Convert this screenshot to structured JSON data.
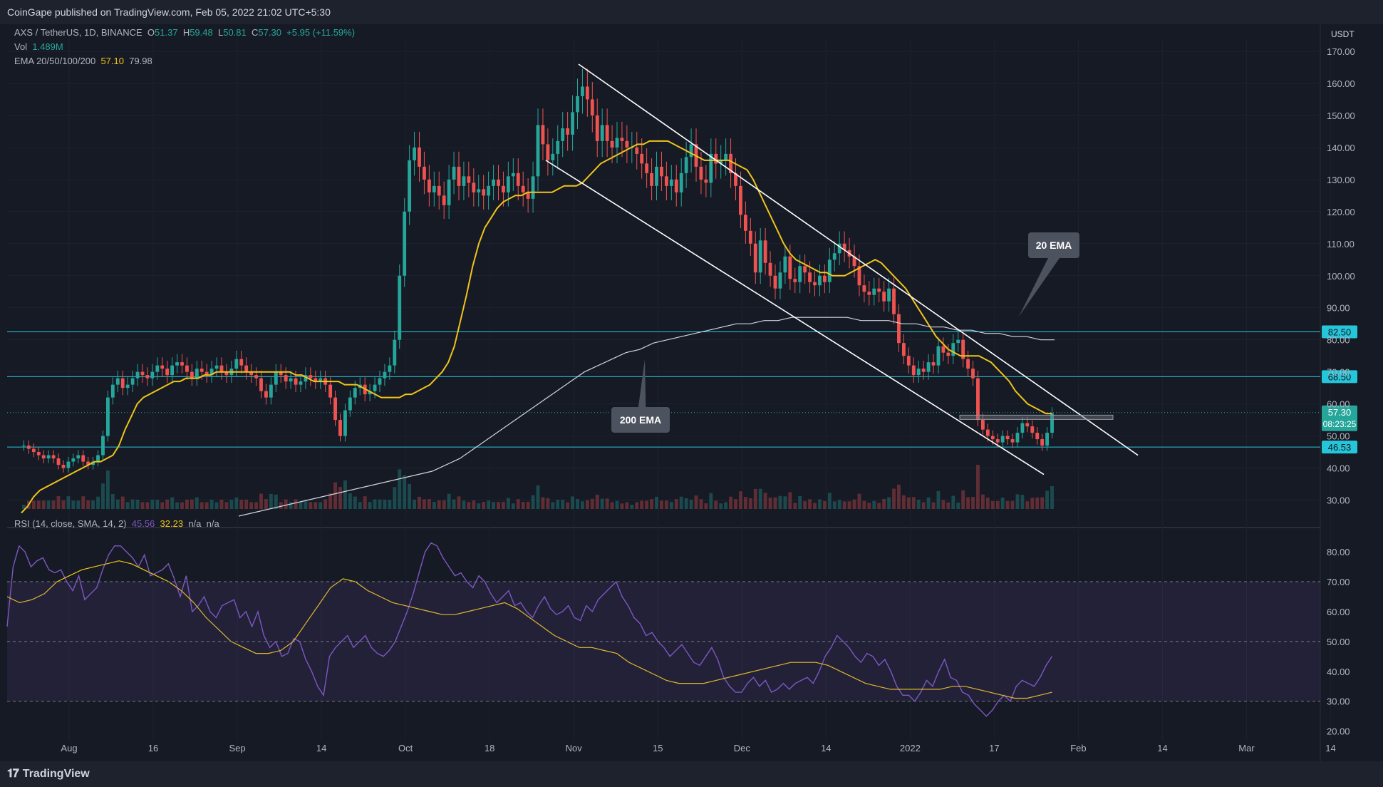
{
  "header": {
    "published": "CoinGape published on TradingView.com, Feb 05, 2022 21:02 UTC+5:30"
  },
  "footer": {
    "brand": "TradingView"
  },
  "legend": {
    "symbol": "AXS / TetherUS, 1D, BINANCE",
    "o_label": "O",
    "o": "51.37",
    "h_label": "H",
    "h": "59.48",
    "l_label": "L",
    "l": "50.81",
    "c_label": "C",
    "c": "57.30",
    "change": "+5.95 (+11.59%)",
    "vol_label": "Vol",
    "vol": "1.489M",
    "ema_label": "EMA 20/50/100/200",
    "ema20": "57.10",
    "ema200": "79.98",
    "rsi_label": "RSI (14, close, SMA, 14, 2)",
    "rsi": "45.56",
    "rsi_sma": "32.23",
    "na1": "n/a",
    "na2": "n/a"
  },
  "colors": {
    "up": "#26a69a",
    "down": "#ef5350",
    "ema20": "#f0c419",
    "ema200": "#d1d4dc",
    "rsi": "#7e57c2",
    "rsi_sma": "#f0c419",
    "level": "#26c6da",
    "bg": "#161a25"
  },
  "chart_data": [
    {
      "type": "candlestick",
      "currency_label": "USDT",
      "x_axis": [
        "Aug",
        "16",
        "Sep",
        "14",
        "Oct",
        "18",
        "Nov",
        "15",
        "Dec",
        "14",
        "2022",
        "17",
        "Feb",
        "14",
        "Mar",
        "14"
      ],
      "y_ticks": [
        "170.00",
        "160.00",
        "150.00",
        "140.00",
        "130.00",
        "120.00",
        "110.00",
        "100.00",
        "90.00",
        "80.00",
        "70.00",
        "60.00",
        "50.00",
        "40.00",
        "30.00"
      ],
      "y_tick_values": [
        170,
        160,
        150,
        140,
        130,
        120,
        110,
        100,
        90,
        80,
        70,
        60,
        50,
        40,
        30
      ],
      "ylim": [
        25,
        174
      ],
      "close_series": [
        47,
        46,
        45,
        44,
        43,
        44,
        43,
        41,
        40,
        42,
        43,
        44,
        42,
        41,
        42,
        44,
        50,
        62,
        66,
        68,
        65,
        66,
        68,
        70,
        69,
        68,
        70,
        72,
        71,
        69,
        72,
        73,
        72,
        70,
        68,
        71,
        70,
        69,
        71,
        72,
        70,
        69,
        71,
        74,
        72,
        70,
        69,
        68,
        64,
        62,
        66,
        70,
        69,
        67,
        68,
        66,
        67,
        69,
        68,
        67,
        68,
        66,
        62,
        55,
        50,
        58,
        62,
        65,
        66,
        63,
        64,
        66,
        68,
        70,
        72,
        80,
        100,
        120,
        136,
        140,
        134,
        130,
        126,
        128,
        125,
        122,
        130,
        134,
        128,
        131,
        129,
        126,
        127,
        125,
        128,
        130,
        128,
        126,
        131,
        132,
        128,
        126,
        124,
        131,
        147,
        141,
        136,
        138,
        142,
        146,
        144,
        151,
        156,
        159,
        155,
        150,
        142,
        147,
        142,
        140,
        143,
        142,
        140,
        140,
        138,
        135,
        132,
        128,
        134,
        131,
        128,
        130,
        126,
        132,
        137,
        141,
        134,
        130,
        129,
        138,
        135,
        136,
        138,
        132,
        128,
        119,
        114,
        110,
        101,
        111,
        104,
        100,
        96,
        101,
        106,
        99,
        98,
        103,
        101,
        98,
        97,
        100,
        98,
        105,
        107,
        110,
        108,
        106,
        103,
        97,
        95,
        94,
        96,
        95,
        92,
        96,
        88,
        79,
        75,
        72,
        69,
        71,
        70,
        73,
        72,
        78,
        76,
        75,
        79,
        80,
        74,
        71,
        68,
        55,
        52,
        50,
        49,
        48,
        50,
        49,
        48,
        51,
        54,
        53,
        51,
        49,
        47,
        51,
        57
      ],
      "ema20_series": [
        26,
        28,
        31,
        33,
        34,
        35,
        36,
        37,
        38,
        39,
        40,
        41,
        42,
        42,
        43,
        44,
        47,
        52,
        56,
        60,
        62,
        63,
        64,
        65,
        66,
        67,
        67,
        68,
        68,
        68,
        69,
        69,
        70,
        70,
        70,
        70,
        70,
        70,
        70,
        70,
        70,
        70,
        70,
        70,
        70,
        69,
        69,
        68,
        67,
        67,
        67,
        67,
        67,
        66,
        66,
        66,
        65,
        64,
        63,
        62,
        62,
        62,
        62,
        63,
        63,
        64,
        65,
        66,
        68,
        70,
        73,
        78,
        86,
        94,
        103,
        110,
        115,
        118,
        121,
        123,
        124,
        125,
        125,
        126,
        126,
        126,
        126,
        126,
        127,
        128,
        128,
        128,
        129,
        131,
        133,
        135,
        136,
        137,
        138,
        139,
        140,
        141,
        141,
        142,
        142,
        142,
        142,
        141,
        140,
        139,
        138,
        137,
        136,
        136,
        136,
        136,
        136,
        135,
        134,
        133,
        130,
        126,
        122,
        118,
        114,
        110,
        107,
        105,
        104,
        103,
        102,
        101,
        101,
        100,
        100,
        100,
        101,
        102,
        103,
        104,
        105,
        104,
        102,
        100,
        98,
        96,
        93,
        90,
        87,
        84,
        81,
        79,
        77,
        76,
        75,
        75,
        75,
        75,
        74,
        73,
        71,
        69,
        67,
        64,
        62,
        60,
        59,
        58,
        57,
        57
      ],
      "ema200_series": [
        25,
        26,
        27,
        28,
        29,
        30,
        31,
        32,
        33,
        34,
        35,
        36,
        37,
        38,
        39,
        41,
        43,
        46,
        49,
        52,
        55,
        58,
        61,
        64,
        67,
        70,
        72,
        74,
        76,
        77,
        79,
        80,
        81,
        82,
        83,
        84,
        85,
        85,
        86,
        86,
        87,
        87,
        87,
        87,
        87,
        86,
        86,
        86,
        85,
        85,
        84,
        84,
        83,
        83,
        82,
        82,
        81,
        81,
        80,
        80
      ],
      "volume_note": "Vol 1.489M"
    },
    {
      "type": "line",
      "title": "RSI (14, close, SMA, 14, 2)",
      "y_ticks": [
        "80.00",
        "70.00",
        "60.00",
        "50.00",
        "40.00",
        "30.00",
        "20.00"
      ],
      "y_tick_values": [
        80,
        70,
        60,
        50,
        40,
        30,
        20
      ],
      "ylim": [
        18,
        86
      ],
      "bands": [
        70,
        50,
        30
      ],
      "series": [
        {
          "values": [
            55,
            75,
            82,
            80,
            75,
            77,
            78,
            74,
            73,
            74,
            70,
            67,
            72,
            64,
            66,
            68,
            74,
            79,
            82,
            82,
            80,
            78,
            75,
            79,
            72,
            73,
            74,
            76,
            71,
            65,
            72,
            60,
            62,
            65,
            60,
            58,
            62,
            63,
            64,
            58,
            60,
            55,
            60,
            52,
            48,
            50,
            45,
            46,
            51,
            50,
            44,
            40,
            35,
            32,
            45,
            48,
            50,
            52,
            48,
            50,
            52,
            48,
            46,
            45,
            47,
            50,
            55,
            60,
            66,
            73,
            80,
            83,
            82,
            78,
            75,
            72,
            73,
            70,
            68,
            72,
            70,
            66,
            63,
            65,
            67,
            62,
            63,
            60,
            58,
            62,
            65,
            61,
            59,
            60,
            62,
            58,
            57,
            62,
            60,
            64,
            66,
            68,
            70,
            65,
            62,
            58,
            56,
            52,
            53,
            50,
            48,
            45,
            47,
            49,
            46,
            43,
            42,
            45,
            48,
            44,
            38,
            35,
            33,
            33,
            36,
            38,
            35,
            37,
            33,
            34,
            36,
            34,
            36,
            37,
            38,
            36,
            40,
            45,
            48,
            52,
            50,
            48,
            45,
            43,
            46,
            45,
            42,
            44,
            40,
            35,
            32,
            32,
            30,
            33,
            37,
            35,
            40,
            44,
            38,
            37,
            33,
            32,
            29,
            27,
            25,
            27,
            30,
            32,
            30,
            35,
            37,
            36,
            35,
            38,
            42,
            45
          ]
        },
        {
          "values": [
            65,
            63,
            64,
            66,
            70,
            72,
            74,
            75,
            76,
            77,
            76,
            74,
            72,
            70,
            67,
            63,
            58,
            54,
            50,
            48,
            46,
            46,
            47,
            50,
            56,
            62,
            68,
            71,
            70,
            67,
            65,
            63,
            62,
            61,
            60,
            59,
            59,
            60,
            61,
            62,
            63,
            61,
            58,
            55,
            52,
            50,
            48,
            48,
            47,
            46,
            43,
            41,
            39,
            37,
            36,
            36,
            36,
            37,
            38,
            39,
            40,
            41,
            42,
            43,
            43,
            43,
            42,
            40,
            38,
            36,
            35,
            34,
            34,
            34,
            34,
            34,
            35,
            35,
            34,
            33,
            32,
            31,
            31,
            32,
            33
          ]
        }
      ]
    }
  ],
  "levels": [
    "82.50",
    "68.50",
    "46.53"
  ],
  "price_badges": {
    "last": "57.30",
    "countdown": "08:23:25"
  },
  "annotations": {
    "ema20": "20 EMA",
    "ema200": "200 EMA"
  }
}
